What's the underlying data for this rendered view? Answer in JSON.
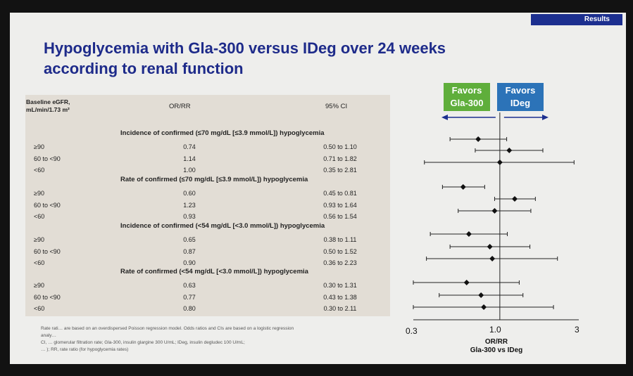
{
  "header": {
    "tag": "Results",
    "title_line1": "Hypoglycemia with Gla-300 versus IDeg over 24 weeks",
    "title_line2": "according to renal function"
  },
  "table": {
    "col_egfr": "Baseline eGFR,",
    "col_egfr_unit": "mL/min/1.73 m²",
    "col_or": "OR/RR",
    "col_ci": "95% CI",
    "sections": [
      {
        "title": "Incidence of confirmed (≤70 mg/dL [≤3.9 mmol/L]) hypoglycemia",
        "rows": [
          {
            "group": "≥90",
            "value": "0.74",
            "ci": "0.50 to 1.10"
          },
          {
            "group": "60 to <90",
            "value": "1.14",
            "ci": "0.71 to 1.82"
          },
          {
            "group": "<60",
            "value": "1.00",
            "ci": "0.35 to 2.81"
          }
        ]
      },
      {
        "title": "Rate of confirmed (≤70 mg/dL [≤3.9 mmol/L]) hypoglycemia",
        "rows": [
          {
            "group": "≥90",
            "value": "0.60",
            "ci": "0.45 to 0.81"
          },
          {
            "group": "60 to <90",
            "value": "1.23",
            "ci": "0.93 to 1.64"
          },
          {
            "group": "<60",
            "value": "0.93",
            "ci": "0.56 to 1.54"
          }
        ]
      },
      {
        "title": "Incidence of confirmed (<54 mg/dL [<3.0 mmol/L]) hypoglycemia",
        "rows": [
          {
            "group": "≥90",
            "value": "0.65",
            "ci": "0.38 to 1.11"
          },
          {
            "group": "60 to <90",
            "value": "0.87",
            "ci": "0.50 to 1.52"
          },
          {
            "group": "<60",
            "value": "0.90",
            "ci": "0.36 to 2.23"
          }
        ]
      },
      {
        "title": "Rate of confirmed (<54 mg/dL [<3.0 mmol/L]) hypoglycemia",
        "rows": [
          {
            "group": "≥90",
            "value": "0.63",
            "ci": "0.30 to 1.31"
          },
          {
            "group": "60 to <90",
            "value": "0.77",
            "ci": "0.43 to 1.38"
          },
          {
            "group": "<60",
            "value": "0.80",
            "ci": "0.30 to 2.11"
          }
        ]
      }
    ]
  },
  "forest": {
    "favors_left_line1": "Favors",
    "favors_left_line2": "Gla-300",
    "favors_right_line1": "Favors",
    "favors_right_line2": "IDeg",
    "tick_labels": [
      "0.3",
      "1.0",
      "3"
    ],
    "axis_title_line1": "OR/RR",
    "axis_title_line2": "Gla-300 vs IDeg",
    "xlim": [
      0.3,
      3
    ],
    "log_scale": true,
    "points": [
      {
        "est": 0.74,
        "lo": 0.5,
        "hi": 1.1
      },
      {
        "est": 1.14,
        "lo": 0.71,
        "hi": 1.82
      },
      {
        "est": 1.0,
        "lo": 0.35,
        "hi": 2.81
      },
      {
        "est": 0.6,
        "lo": 0.45,
        "hi": 0.81
      },
      {
        "est": 1.23,
        "lo": 0.93,
        "hi": 1.64
      },
      {
        "est": 0.93,
        "lo": 0.56,
        "hi": 1.54
      },
      {
        "est": 0.65,
        "lo": 0.38,
        "hi": 1.11
      },
      {
        "est": 0.87,
        "lo": 0.5,
        "hi": 1.52
      },
      {
        "est": 0.9,
        "lo": 0.36,
        "hi": 2.23
      },
      {
        "est": 0.63,
        "lo": 0.3,
        "hi": 1.31
      },
      {
        "est": 0.77,
        "lo": 0.43,
        "hi": 1.38
      },
      {
        "est": 0.8,
        "lo": 0.3,
        "hi": 2.11
      }
    ]
  },
  "footnote": {
    "line1": "Rate rati… are based on an overdispersed Poisson regression model. Odds ratios and CIs are based on a logistic regression",
    "line2": "analy…",
    "line3": "CI, … glomerular filtration rate; Gla-300, insulin glargine 300 U/mL; IDeg, insulin degludec 100 U/mL;",
    "line4": "… ); RR, rate ratio (for hypoglycemia rates)"
  },
  "colors": {
    "title": "#1e2b8a",
    "green": "#5fae3b",
    "blue": "#2c73b8",
    "arrow": "#1c2f8f"
  }
}
